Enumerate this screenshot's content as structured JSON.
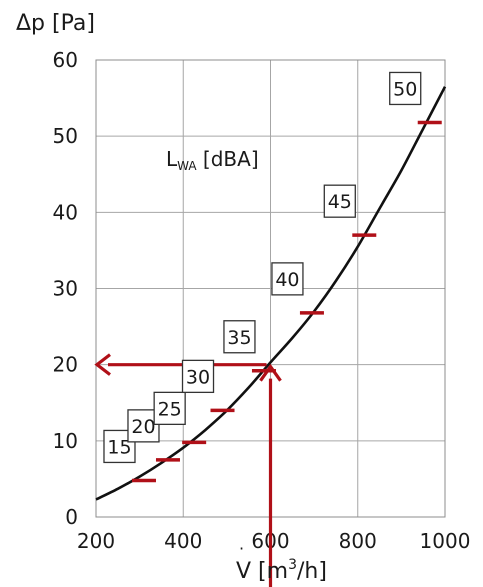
{
  "colors": {
    "curve": "#111111",
    "marker": "#b01018",
    "arrow": "#b01018",
    "grid": "#a6a6a6"
  },
  "chart_data": {
    "type": "line",
    "xlabel": {
      "prefix": "V",
      "unit_before": " [m",
      "sup": "3",
      "unit_after": "/h]"
    },
    "ylabel": "Δp [Pa]",
    "xlim": [
      200,
      1000
    ],
    "ylim": [
      0,
      60
    ],
    "xticks": [
      200,
      400,
      600,
      800,
      1000
    ],
    "yticks": [
      0,
      10,
      20,
      30,
      40,
      50,
      60
    ],
    "grid": true,
    "curve": {
      "x": [
        200,
        250,
        300,
        350,
        400,
        450,
        500,
        550,
        600,
        650,
        700,
        750,
        800,
        850,
        900,
        950,
        1000
      ],
      "y": [
        2.3,
        3.7,
        5.3,
        7.1,
        9.1,
        11.4,
        14.0,
        17.0,
        20.3,
        23.5,
        27.0,
        31.0,
        35.5,
        40.5,
        45.5,
        51.0,
        56.5
      ]
    },
    "noise_annotation": {
      "main": "L",
      "sub": "WA",
      "unit": " [dBA]"
    },
    "sound_levels": [
      {
        "label": "15",
        "x": 310,
        "y": 4.8
      },
      {
        "label": "20",
        "x": 365,
        "y": 7.5
      },
      {
        "label": "25",
        "x": 425,
        "y": 9.8
      },
      {
        "label": "30",
        "x": 490,
        "y": 14.0
      },
      {
        "label": "35",
        "x": 585,
        "y": 19.2
      },
      {
        "label": "40",
        "x": 695,
        "y": 26.8
      },
      {
        "label": "45",
        "x": 815,
        "y": 37.0
      },
      {
        "label": "50",
        "x": 965,
        "y": 51.8
      }
    ],
    "reading_example": {
      "x": 600,
      "y": 20
    }
  }
}
